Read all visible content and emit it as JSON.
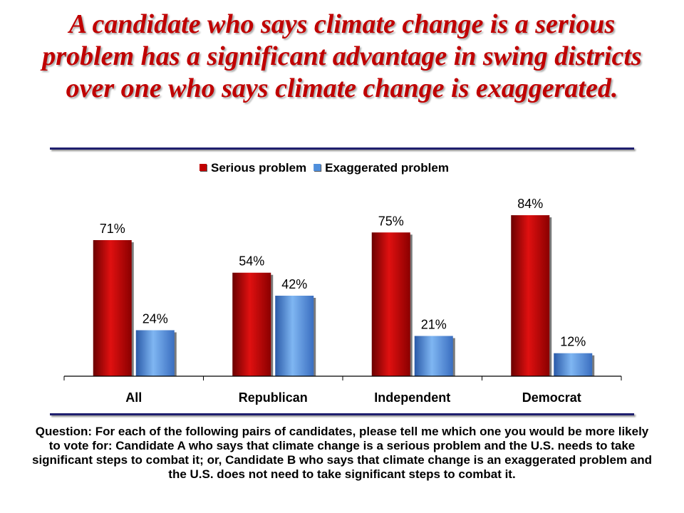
{
  "title": "A candidate who says climate change is a serious problem has a significant advantage in swing districts over one who says climate change is exaggerated.",
  "footnote": "Question: For each of the following pairs of candidates, please tell me which one you would be more likely to vote for: Candidate A who says that climate change is a serious problem and the U.S. needs to take significant steps to combat it; or, Candidate B who says that climate change is an exaggerated problem and the U.S. does not need to take significant steps to combat it.",
  "chart_data": {
    "type": "bar",
    "categories": [
      "All",
      "Republican",
      "Independent",
      "Democrat"
    ],
    "series": [
      {
        "name": "Serious problem",
        "values": [
          71,
          54,
          75,
          84
        ],
        "labels": [
          "71%",
          "54%",
          "75%",
          "84%"
        ],
        "color": "#c00000"
      },
      {
        "name": "Exaggerated problem",
        "values": [
          24,
          42,
          21,
          12
        ],
        "labels": [
          "24%",
          "42%",
          "21%",
          "12%"
        ],
        "color": "#4f8fdc"
      }
    ],
    "legend_position": "top-right",
    "grid": false,
    "ylim": [
      0,
      100
    ]
  }
}
